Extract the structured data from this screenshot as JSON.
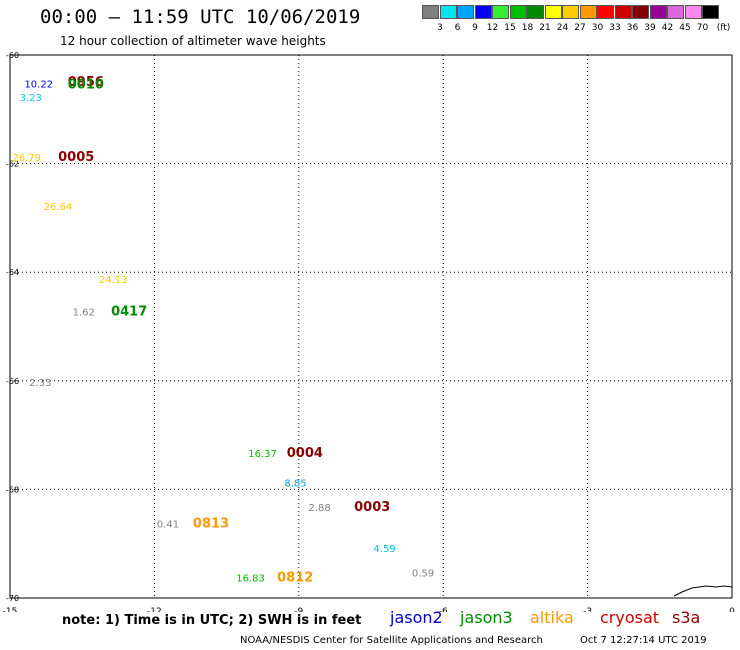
{
  "header": {
    "title": "00:00 – 11:59 UTC 10/06/2019",
    "subtitle": "12 hour collection of altimeter wave heights"
  },
  "legend": {
    "unit": "(ft)",
    "swatches": [
      {
        "label": "3",
        "color": "#808080"
      },
      {
        "label": "6",
        "color": "#00e5ee"
      },
      {
        "label": "9",
        "color": "#00a2ff"
      },
      {
        "label": "12",
        "color": "#0000ee"
      },
      {
        "label": "15",
        "color": "#33ee33"
      },
      {
        "label": "18",
        "color": "#00bb00"
      },
      {
        "label": "21",
        "color": "#008800"
      },
      {
        "label": "24",
        "color": "#ffff00"
      },
      {
        "label": "27",
        "color": "#ffcc00"
      },
      {
        "label": "30",
        "color": "#ff9900"
      },
      {
        "label": "33",
        "color": "#ff0000"
      },
      {
        "label": "36",
        "color": "#cc0000"
      },
      {
        "label": "39",
        "color": "#880000"
      },
      {
        "label": "42",
        "color": "#990099"
      },
      {
        "label": "45",
        "color": "#dd66dd"
      },
      {
        "label": "70",
        "color": "#ff88ee"
      },
      {
        "label": "",
        "color": "#000000"
      }
    ]
  },
  "chart_data": {
    "type": "scatter",
    "xlim": [
      -15,
      0
    ],
    "ylim": [
      -70,
      -60
    ],
    "x_ticks": [
      "-15",
      "-12",
      "-9",
      "-6",
      "-3",
      "0"
    ],
    "y_ticks": [
      "-60",
      "-62",
      "-64",
      "-66",
      "-68",
      "-70"
    ],
    "grid": true,
    "labels": [
      {
        "text": "10.22",
        "lon": -14.7,
        "lat": -60.6,
        "color": "#0000ee",
        "kind": "value"
      },
      {
        "text": "3.23",
        "lon": -14.8,
        "lat": -60.85,
        "color": "#00c8e0",
        "kind": "value"
      },
      {
        "text": "0956",
        "lon": -13.8,
        "lat": -60.57,
        "color": "#880000",
        "kind": "time"
      },
      {
        "text": "0010",
        "lon": -13.8,
        "lat": -60.62,
        "color": "#008800",
        "kind": "time"
      },
      {
        "text": "26.79",
        "lon": -14.95,
        "lat": -61.95,
        "color": "#ffcc00",
        "kind": "value"
      },
      {
        "text": "0005",
        "lon": -14.0,
        "lat": -61.95,
        "color": "#880000",
        "kind": "time"
      },
      {
        "text": "26.64",
        "lon": -14.3,
        "lat": -62.85,
        "color": "#ffcc00",
        "kind": "value"
      },
      {
        "text": "24.13",
        "lon": -13.15,
        "lat": -64.2,
        "color": "#ffcc00",
        "kind": "value"
      },
      {
        "text": "1.62",
        "lon": -13.7,
        "lat": -64.8,
        "color": "#808080",
        "kind": "value"
      },
      {
        "text": "0417",
        "lon": -12.9,
        "lat": -64.8,
        "color": "#008800",
        "kind": "time"
      },
      {
        "text": "2.33",
        "lon": -14.6,
        "lat": -66.1,
        "color": "#808080",
        "kind": "value"
      },
      {
        "text": "16.37",
        "lon": -10.05,
        "lat": -67.4,
        "color": "#00bb00",
        "kind": "value"
      },
      {
        "text": "0004",
        "lon": -9.25,
        "lat": -67.4,
        "color": "#880000",
        "kind": "time"
      },
      {
        "text": "8.85",
        "lon": -9.3,
        "lat": -67.95,
        "color": "#00a2ff",
        "kind": "value"
      },
      {
        "text": "2.88",
        "lon": -8.8,
        "lat": -68.4,
        "color": "#808080",
        "kind": "value"
      },
      {
        "text": "0003",
        "lon": -7.85,
        "lat": -68.4,
        "color": "#880000",
        "kind": "time"
      },
      {
        "text": "0.41",
        "lon": -11.95,
        "lat": -68.7,
        "color": "#808080",
        "kind": "value"
      },
      {
        "text": "0813",
        "lon": -11.2,
        "lat": -68.7,
        "color": "#ff9900",
        "kind": "time"
      },
      {
        "text": "4.59",
        "lon": -7.45,
        "lat": -69.15,
        "color": "#00c8e0",
        "kind": "value"
      },
      {
        "text": "0.59",
        "lon": -6.65,
        "lat": -69.6,
        "color": "#808080",
        "kind": "value"
      },
      {
        "text": "16.83",
        "lon": -10.3,
        "lat": -69.7,
        "color": "#00bb00",
        "kind": "value"
      },
      {
        "text": "0812",
        "lon": -9.45,
        "lat": -69.7,
        "color": "#ff9900",
        "kind": "time"
      }
    ]
  },
  "footer": {
    "note": "note: 1) Time is in UTC; 2) SWH is in feet",
    "satellites": [
      {
        "name": "jason2",
        "color": "#0000cc"
      },
      {
        "name": "jason3",
        "color": "#008800"
      },
      {
        "name": "altika",
        "color": "#ff9900"
      },
      {
        "name": "cryosat",
        "color": "#cc0000"
      },
      {
        "name": "s3a",
        "color": "#880000"
      }
    ],
    "credit": "NOAA/NESDIS Center for Satellite Applications and Research",
    "timestamp": "Oct  7 12:27:14 UTC 2019"
  }
}
